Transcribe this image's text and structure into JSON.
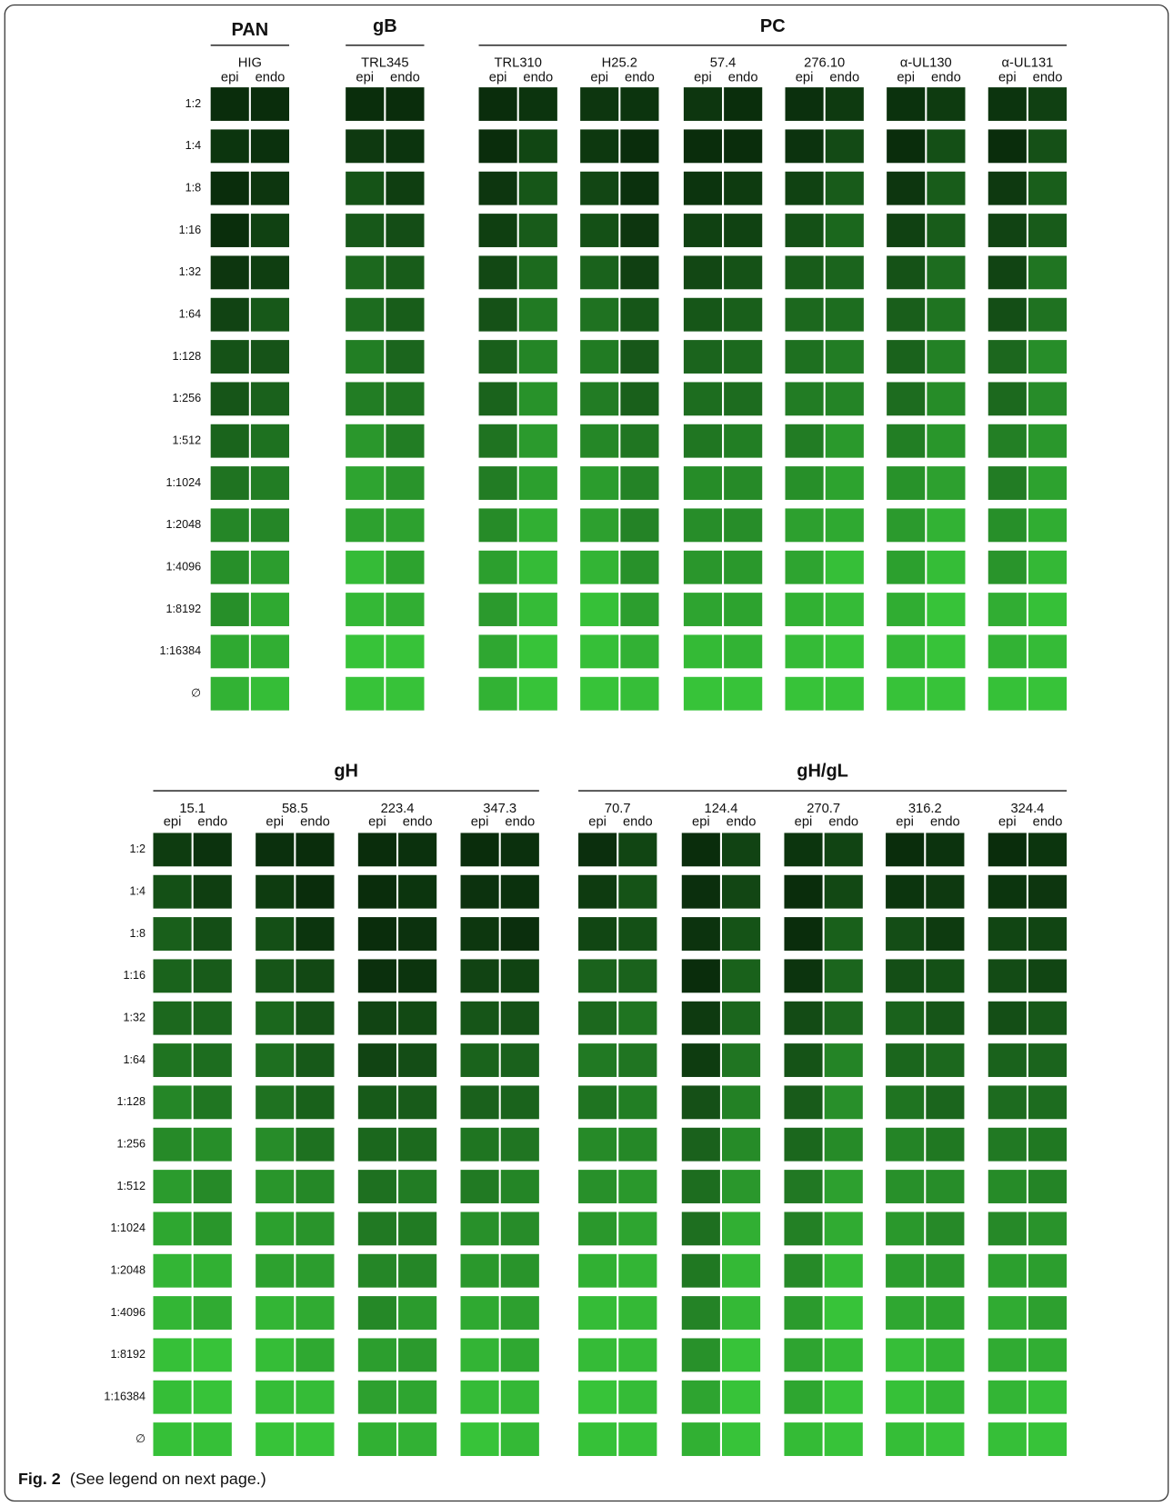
{
  "figure": {
    "panels": [
      {
        "rows": [
          "1:2",
          "1:4",
          "1:8",
          "1:16",
          "1:32",
          "1:64",
          "1:128",
          "1:256",
          "1:512",
          "1:1024",
          "1:2048",
          "1:4096",
          "1:8192",
          "1:16384",
          "∅"
        ],
        "groups": [
          {
            "label": "PAN",
            "antibodies": [
              {
                "name": "HIG",
                "cells": [
                  "epi",
                  "endo"
                ]
              }
            ]
          },
          {
            "label": "gB",
            "antibodies": [
              {
                "name": "TRL345",
                "cells": [
                  "epi",
                  "endo"
                ]
              }
            ]
          },
          {
            "label": "PC",
            "antibodies": [
              {
                "name": "TRL310",
                "cells": [
                  "epi",
                  "endo"
                ]
              },
              {
                "name": "H25.2",
                "cells": [
                  "epi",
                  "endo"
                ]
              },
              {
                "name": "57.4",
                "cells": [
                  "epi",
                  "endo"
                ]
              },
              {
                "name": "276.10",
                "cells": [
                  "epi",
                  "endo"
                ]
              },
              {
                "name": "α-UL130",
                "cells": [
                  "epi",
                  "endo"
                ]
              },
              {
                "name": "α-UL131",
                "cells": [
                  "epi",
                  "endo"
                ]
              }
            ]
          }
        ]
      },
      {
        "rows": [
          "1:2",
          "1:4",
          "1:8",
          "1:16",
          "1:32",
          "1:64",
          "1:128",
          "1:256",
          "1:512",
          "1:1024",
          "1:2048",
          "1:4096",
          "1:8192",
          "1:16384",
          "∅"
        ],
        "groups": [
          {
            "label": "gH",
            "antibodies": [
              {
                "name": "15.1",
                "cells": [
                  "epi",
                  "endo"
                ]
              },
              {
                "name": "58.5",
                "cells": [
                  "epi",
                  "endo"
                ]
              },
              {
                "name": "223.4",
                "cells": [
                  "epi",
                  "endo"
                ]
              },
              {
                "name": "347.3",
                "cells": [
                  "epi",
                  "endo"
                ]
              }
            ]
          },
          {
            "label": "gH/gL",
            "antibodies": [
              {
                "name": "70.7",
                "cells": [
                  "epi",
                  "endo"
                ]
              },
              {
                "name": "124.4",
                "cells": [
                  "epi",
                  "endo"
                ]
              },
              {
                "name": "270.7",
                "cells": [
                  "epi",
                  "endo"
                ]
              },
              {
                "name": "316.2",
                "cells": [
                  "epi",
                  "endo"
                ]
              },
              {
                "name": "324.4",
                "cells": [
                  "epi",
                  "endo"
                ]
              }
            ]
          }
        ]
      }
    ],
    "caption": {
      "label": "Fig. 2",
      "text": "(See legend on next page.)"
    }
  }
}
